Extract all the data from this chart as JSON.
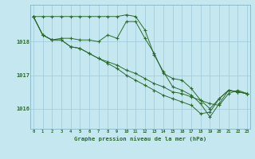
{
  "bg_color": "#c5e8f0",
  "grid_color": "#9ec8d8",
  "line_color": "#2d6a2d",
  "xlabel": "Graphe pression niveau de la mer (hPa)",
  "yticks": [
    1016,
    1017,
    1018
  ],
  "xticks": [
    0,
    1,
    2,
    3,
    4,
    5,
    6,
    7,
    8,
    9,
    10,
    11,
    12,
    13,
    14,
    15,
    16,
    17,
    18,
    19,
    20,
    21,
    22,
    23
  ],
  "ylim": [
    1015.4,
    1019.1
  ],
  "xlim": [
    -0.3,
    23.3
  ],
  "line_flat": [
    1018.75,
    1018.75,
    1018.75,
    1018.75,
    1018.75,
    1018.75,
    1018.75,
    1018.75,
    1018.75,
    1018.75,
    1018.8,
    1018.75,
    1018.35,
    1017.6,
    1017.1,
    1016.65,
    1016.55,
    1016.4,
    1016.15,
    1015.75,
    1016.15,
    1016.55,
    1016.5,
    1016.45
  ],
  "line_peak": [
    1018.75,
    1018.2,
    1018.05,
    1018.1,
    1018.1,
    1018.05,
    1018.05,
    1018.0,
    1018.2,
    1018.1,
    1018.6,
    1018.6,
    1018.1,
    1017.65,
    1017.05,
    1016.9,
    1016.85,
    1016.6,
    1016.25,
    1016.0,
    1016.3,
    1016.55,
    1016.5,
    1016.45
  ],
  "line_mod": [
    1018.75,
    1018.2,
    1018.05,
    1018.05,
    1017.85,
    1017.8,
    1017.65,
    1017.5,
    1017.4,
    1017.3,
    1017.15,
    1017.05,
    1016.9,
    1016.75,
    1016.65,
    1016.5,
    1016.45,
    1016.35,
    1016.25,
    1016.15,
    1016.1,
    1016.45,
    1016.55,
    1016.45
  ],
  "line_steep": [
    1018.75,
    1018.2,
    1018.05,
    1018.05,
    1017.85,
    1017.8,
    1017.65,
    1017.5,
    1017.35,
    1017.2,
    1017.0,
    1016.85,
    1016.7,
    1016.55,
    1016.4,
    1016.3,
    1016.2,
    1016.1,
    1015.85,
    1015.9,
    1016.3,
    1016.55,
    1016.5,
    1016.45
  ]
}
